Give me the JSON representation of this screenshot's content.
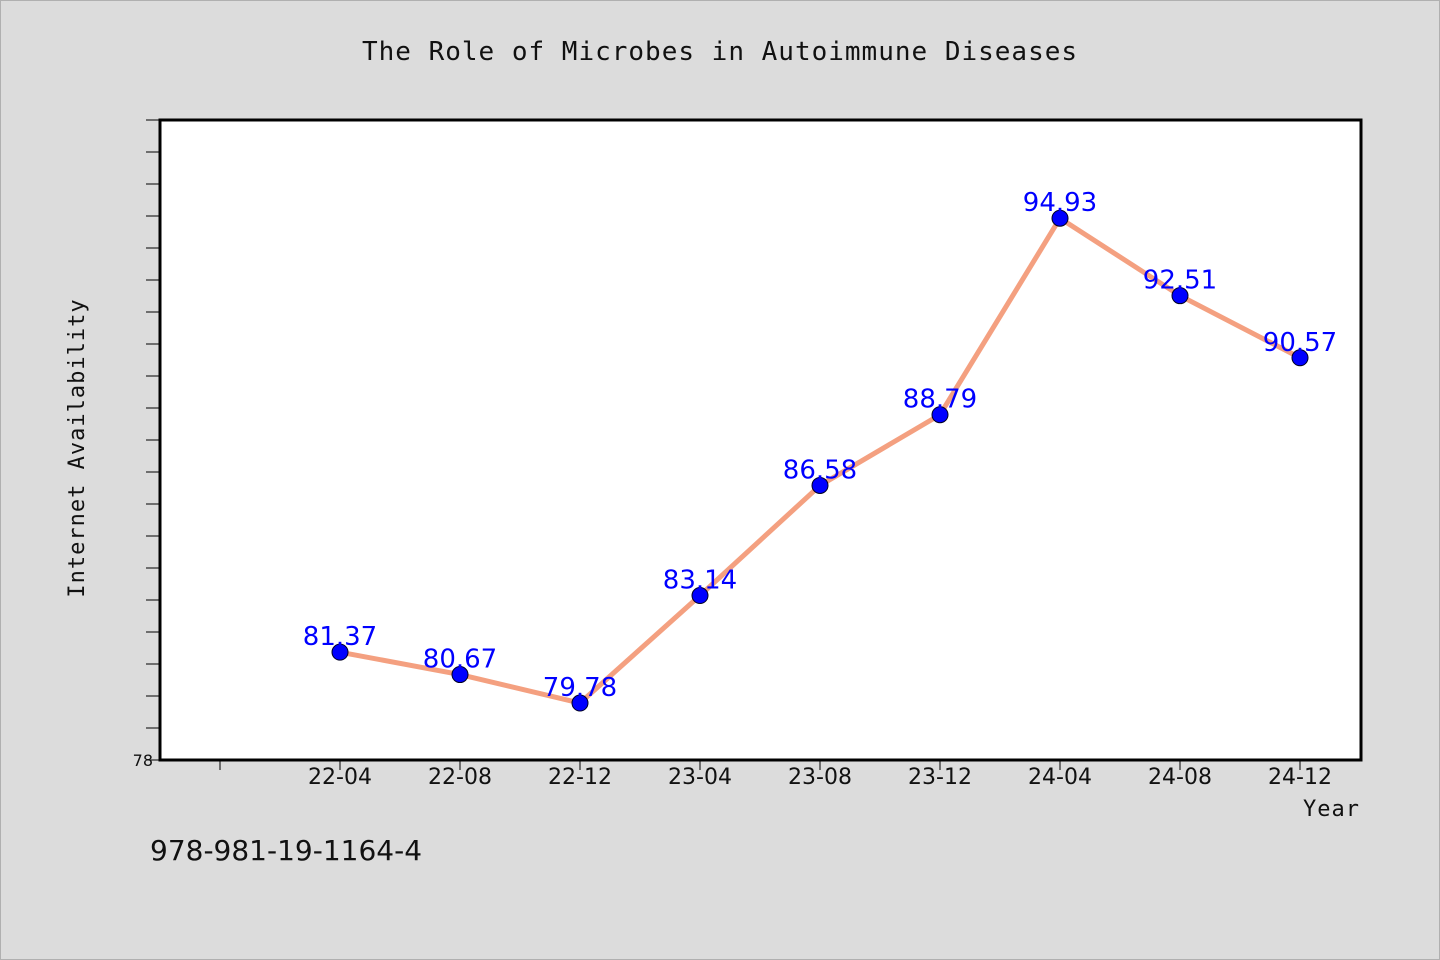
{
  "colors": {
    "background": "#dcdcdc",
    "plot_background": "#ffffff",
    "line": "#f4a080",
    "marker": "#0000ff",
    "data_label": "#0000ff"
  },
  "footer": {
    "isbn": "978-981-19-1164-4"
  },
  "chart_data": {
    "type": "line",
    "title": "The Role of Microbes in Autoimmune Diseases",
    "xlabel": "Year",
    "ylabel": "Internet Availability",
    "categories": [
      "22-04",
      "22-08",
      "22-12",
      "23-04",
      "23-08",
      "23-12",
      "24-04",
      "24-08",
      "24-12"
    ],
    "series": [
      {
        "values": [
          81.37,
          80.67,
          79.78,
          83.14,
          86.58,
          88.79,
          94.93,
          92.51,
          90.57
        ]
      }
    ],
    "data_labels": [
      "81.37",
      "80.67",
      "79.78",
      "83.14",
      "86.58",
      "88.79",
      "94.93",
      "92.51",
      "90.57"
    ],
    "ylim": [
      78,
      98
    ],
    "y_tick_labels": [
      "78"
    ],
    "grid": false,
    "legend": "none"
  }
}
